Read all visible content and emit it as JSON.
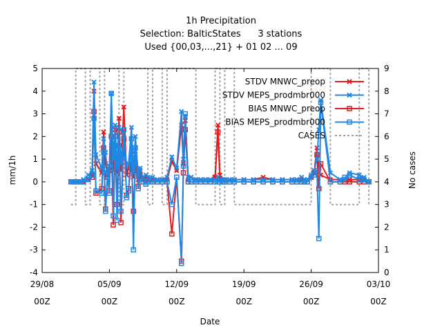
{
  "chart_data": {
    "type": "line",
    "title": [
      "1h Precipitation",
      "Selection: BalticStates      3 stations",
      "Used {00,03,...,21} + 01 02 ... 09"
    ],
    "xlabel": "Date",
    "ylabel": "mm/1h",
    "y2label": "No cases",
    "xlim": [
      0,
      35
    ],
    "ylim": [
      -4,
      5
    ],
    "y2lim": [
      0,
      9
    ],
    "x_ticks": [
      {
        "pos": 0,
        "l1": "29/08",
        "l2": "00Z"
      },
      {
        "pos": 7,
        "l1": "05/09",
        "l2": "00Z"
      },
      {
        "pos": 14,
        "l1": "12/09",
        "l2": "00Z"
      },
      {
        "pos": 21,
        "l1": "19/09",
        "l2": "00Z"
      },
      {
        "pos": 28,
        "l1": "26/09",
        "l2": "00Z"
      },
      {
        "pos": 35,
        "l1": "03/10",
        "l2": "00Z"
      }
    ],
    "y_ticks": [
      "-4",
      "-3",
      "-2",
      "-1",
      "0",
      "1",
      "2",
      "3",
      "4",
      "5"
    ],
    "y2_ticks": [
      "0",
      "1",
      "2",
      "3",
      "4",
      "5",
      "6",
      "7",
      "8",
      "9"
    ],
    "legend_position": "top-right",
    "series": [
      {
        "name": "STDV MNWC_preop",
        "color": "#e41a1c",
        "marker": "x",
        "x": [
          3.0,
          3.5,
          4.0,
          4.3,
          4.8,
          5.2,
          5.4,
          5.6,
          6.2,
          6.4,
          6.6,
          6.8,
          7.0,
          7.2,
          7.4,
          7.6,
          7.8,
          8.0,
          8.2,
          8.5,
          8.8,
          9.0,
          9.3,
          9.5,
          9.7,
          10.0,
          10.2,
          10.5,
          10.8,
          11.0,
          11.5,
          12.0,
          12.5,
          13.0,
          13.5,
          14.0,
          14.5,
          14.7,
          14.9,
          15.2,
          15.5,
          16.0,
          16.5,
          17.0,
          17.5,
          18.0,
          18.3,
          18.5,
          18.8,
          19.0,
          19.5,
          20.0,
          21.0,
          22.0,
          23.0,
          24.0,
          25.0,
          26.0,
          26.5,
          27.0,
          27.3,
          27.6,
          28.0,
          28.3,
          28.6,
          28.8,
          29.0,
          30.0,
          31.0,
          31.5,
          32.0,
          33.0,
          33.5,
          34.0
        ],
        "y": [
          0,
          0,
          0,
          0,
          0.1,
          0.3,
          4.0,
          0.8,
          0.4,
          2.2,
          0.8,
          0.3,
          0.5,
          1.6,
          0.5,
          2.3,
          0.4,
          2.8,
          0.5,
          3.3,
          0.3,
          0.6,
          1.4,
          0.2,
          1.2,
          0.1,
          0.5,
          0.1,
          0.2,
          0.1,
          0.1,
          0.1,
          0.1,
          0.1,
          0.9,
          0.5,
          2.5,
          0.8,
          2.7,
          0.1,
          0.2,
          0.1,
          0.1,
          0.1,
          0.1,
          0.2,
          2.5,
          0.3,
          0.1,
          0.1,
          0.1,
          0.1,
          0.1,
          0.1,
          0.2,
          0.1,
          0.1,
          0.1,
          0.1,
          0.1,
          0.1,
          0.1,
          0.2,
          0.4,
          1.5,
          0.6,
          0.3,
          0.1,
          0.1,
          0.1,
          0.1,
          0.1,
          0.1,
          0
        ]
      },
      {
        "name": "STDV MEPS_prodmbr000",
        "color": "#1f88e5",
        "marker": "x",
        "x": [
          3.0,
          3.5,
          4.0,
          4.3,
          4.8,
          5.2,
          5.4,
          5.6,
          6.2,
          6.4,
          6.6,
          6.8,
          7.0,
          7.2,
          7.4,
          7.6,
          7.8,
          8.0,
          8.2,
          8.5,
          8.8,
          9.0,
          9.3,
          9.5,
          9.7,
          10.0,
          10.2,
          10.5,
          10.8,
          11.0,
          11.5,
          12.0,
          12.5,
          13.0,
          13.5,
          14.0,
          14.5,
          14.7,
          14.9,
          15.2,
          15.5,
          16.0,
          16.5,
          17.0,
          17.5,
          18.0,
          18.3,
          18.5,
          18.8,
          19.0,
          19.5,
          20.0,
          21.0,
          22.0,
          23.0,
          24.0,
          25.0,
          26.0,
          26.5,
          27.0,
          27.3,
          27.6,
          28.0,
          28.3,
          28.6,
          28.8,
          29.0,
          30.0,
          31.0,
          31.5,
          32.0,
          33.0,
          33.5,
          34.0
        ],
        "y": [
          0,
          0,
          0,
          0.1,
          0.3,
          0.5,
          4.4,
          1.2,
          0.6,
          1.9,
          1.3,
          0.4,
          0.7,
          3.9,
          1.0,
          2.5,
          0.6,
          2.4,
          0.8,
          2.0,
          0.7,
          0.8,
          2.4,
          0.4,
          2.0,
          0.3,
          0.6,
          0.2,
          0.3,
          0.2,
          0.2,
          0.1,
          0.1,
          0.2,
          1.1,
          0.6,
          3.1,
          1.0,
          2.9,
          0.2,
          0.2,
          0.1,
          0.1,
          0.1,
          0.1,
          0.1,
          0.2,
          0.1,
          0.1,
          0.1,
          0.1,
          0.1,
          0.1,
          0.1,
          0.1,
          0.1,
          0.1,
          0.1,
          0.1,
          0.2,
          0.1,
          0.1,
          0.3,
          0.5,
          1.0,
          2.3,
          3.6,
          0.4,
          0.1,
          0.1,
          0.4,
          0.3,
          0.2,
          0
        ]
      },
      {
        "name": "BIAS MNWC_preop",
        "color": "#e41a1c",
        "marker": "square",
        "x": [
          3.0,
          3.5,
          4.0,
          4.3,
          4.8,
          5.2,
          5.4,
          5.6,
          6.2,
          6.4,
          6.6,
          6.8,
          7.0,
          7.2,
          7.4,
          7.6,
          7.8,
          8.0,
          8.2,
          8.5,
          8.8,
          9.0,
          9.3,
          9.5,
          9.7,
          10.0,
          10.2,
          10.5,
          10.8,
          11.0,
          11.5,
          12.0,
          12.5,
          13.0,
          13.5,
          14.0,
          14.5,
          14.7,
          14.9,
          15.2,
          15.5,
          16.0,
          16.5,
          17.0,
          17.5,
          18.0,
          18.3,
          18.5,
          18.8,
          19.0,
          19.5,
          20.0,
          21.0,
          22.0,
          23.0,
          24.0,
          25.0,
          26.0,
          26.5,
          27.0,
          27.3,
          27.6,
          28.0,
          28.3,
          28.6,
          28.8,
          29.0,
          30.0,
          31.0,
          31.5,
          32.0,
          33.0,
          33.5,
          34.0
        ],
        "y": [
          0,
          0,
          0,
          0,
          0.1,
          0.2,
          3.1,
          -0.5,
          -0.3,
          1.5,
          -1.2,
          0.2,
          -0.4,
          2.0,
          -1.9,
          1.6,
          -1.0,
          2.2,
          -1.8,
          1.9,
          -0.6,
          -0.3,
          0.9,
          -1.3,
          0.8,
          -0.2,
          0.3,
          0,
          -0.1,
          0,
          0,
          0,
          0,
          0,
          -2.3,
          0.2,
          -3.5,
          0.4,
          2.3,
          0,
          0,
          0,
          0,
          0,
          0,
          0.2,
          2.2,
          0.1,
          0,
          0,
          0,
          0,
          0,
          0,
          0,
          0,
          0,
          0,
          0,
          0,
          0,
          0,
          0.2,
          0.4,
          1.2,
          -0.3,
          0.8,
          0,
          0,
          0,
          0,
          0,
          0,
          0
        ]
      },
      {
        "name": "BIAS MEPS_prodmbr000",
        "color": "#1f88e5",
        "marker": "square",
        "x": [
          3.0,
          3.5,
          4.0,
          4.3,
          4.8,
          5.2,
          5.4,
          5.6,
          6.2,
          6.4,
          6.6,
          6.8,
          7.0,
          7.2,
          7.4,
          7.6,
          7.8,
          8.0,
          8.2,
          8.5,
          8.8,
          9.0,
          9.3,
          9.5,
          9.7,
          10.0,
          10.2,
          10.5,
          10.8,
          11.0,
          11.5,
          12.0,
          12.5,
          13.0,
          13.5,
          14.0,
          14.5,
          14.7,
          14.9,
          15.2,
          15.5,
          16.0,
          16.5,
          17.0,
          17.5,
          18.0,
          18.3,
          18.5,
          18.8,
          19.0,
          19.5,
          20.0,
          21.0,
          22.0,
          23.0,
          24.0,
          25.0,
          26.0,
          26.5,
          27.0,
          27.3,
          27.6,
          28.0,
          28.3,
          28.6,
          28.8,
          29.0,
          30.0,
          31.0,
          31.5,
          32.0,
          33.0,
          33.5,
          34.0
        ],
        "y": [
          0,
          0,
          0,
          0,
          0.1,
          0.3,
          2.8,
          -0.4,
          -0.5,
          1.3,
          -1.3,
          0.4,
          -0.5,
          3.9,
          -1.5,
          2.0,
          -1.7,
          1.6,
          -1.3,
          2.3,
          -0.7,
          -0.4,
          1.9,
          -3.0,
          1.5,
          -0.3,
          0.2,
          0,
          -0.1,
          0,
          0,
          0,
          0,
          0,
          -1.0,
          0.2,
          -3.6,
          0.7,
          3.0,
          0,
          0,
          0,
          0,
          0,
          0,
          0,
          0,
          0,
          0,
          0,
          0,
          0,
          0,
          0,
          0,
          0,
          0,
          0,
          0,
          0,
          0,
          0,
          0.2,
          0.3,
          0.5,
          -2.5,
          3.5,
          0,
          0,
          0.2,
          0.3,
          0.1,
          0.1,
          0
        ]
      },
      {
        "name": "CASES",
        "color": "#a0a0a0",
        "marker": "none",
        "dashed": true,
        "axis": "y2",
        "x": [
          3.0,
          3.5,
          4.0,
          4.5,
          5.0,
          5.5,
          6.0,
          6.5,
          7.0,
          7.5,
          8.0,
          8.5,
          9.0,
          9.5,
          10.0,
          10.5,
          11.0,
          11.5,
          12.0,
          12.5,
          13.0,
          13.5,
          14.0,
          14.5,
          15.0,
          16.0,
          17.0,
          18.0,
          18.5,
          19.0,
          20.0,
          21.0,
          22.0,
          23.0,
          24.0,
          25.0,
          26.0,
          27.0,
          28.0,
          28.5,
          29.0,
          30.0,
          31.0,
          32.0,
          33.0,
          33.5,
          34.0
        ],
        "y": [
          3,
          9,
          9,
          3,
          9,
          9,
          3,
          9,
          9,
          9,
          3,
          9,
          9,
          9,
          9,
          9,
          3,
          9,
          9,
          3,
          9,
          9,
          9,
          9,
          9,
          3,
          3,
          9,
          3,
          9,
          3,
          3,
          3,
          3,
          3,
          3,
          3,
          3,
          9,
          9,
          9,
          3,
          3,
          3,
          9,
          9,
          3
        ]
      }
    ]
  }
}
